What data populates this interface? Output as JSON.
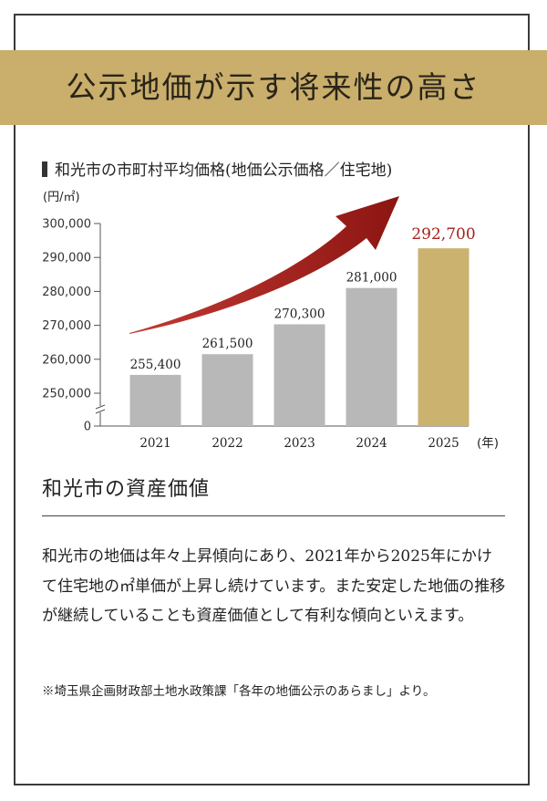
{
  "banner": {
    "title": "公示地価が示す将来性の高さ"
  },
  "chart_heading": "和光市の市町村平均価格(地価公示価格／住宅地)",
  "chart_data": {
    "type": "bar",
    "title": "和光市の市町村平均価格(地価公示価格／住宅地)",
    "ylabel": "(円/㎡)",
    "xlabel": "(年)",
    "categories": [
      "2021",
      "2022",
      "2023",
      "2024",
      "2025"
    ],
    "values": [
      255400,
      261500,
      270300,
      281000,
      292700
    ],
    "value_labels": [
      "255,400",
      "261,500",
      "270,300",
      "281,000",
      "292,700"
    ],
    "yticks": [
      0,
      250000,
      260000,
      270000,
      280000,
      290000,
      300000
    ],
    "ytick_labels": [
      "0",
      "250,000",
      "260,000",
      "270,000",
      "280,000",
      "290,000",
      "300,000"
    ],
    "ylim": [
      240000,
      300000
    ],
    "axis_break": true,
    "grid": false,
    "legend": "none",
    "colors": {
      "bar": "#b8b8b8",
      "highlight": "#cbb26e",
      "highlight_label": "#a6201c",
      "arrow": "#9e1a17"
    }
  },
  "section": {
    "title": "和光市の資産価値",
    "body": "和光市の地価は年々上昇傾向にあり、2021年から2025年にかけて住宅地の㎡単価が上昇し続けています。また安定した地価の推移が継続していることも資産価値として有利な傾向といえます。",
    "note": "※埼玉県企画財政部土地水政策課「各年の地価公示のあらまし」より。"
  }
}
